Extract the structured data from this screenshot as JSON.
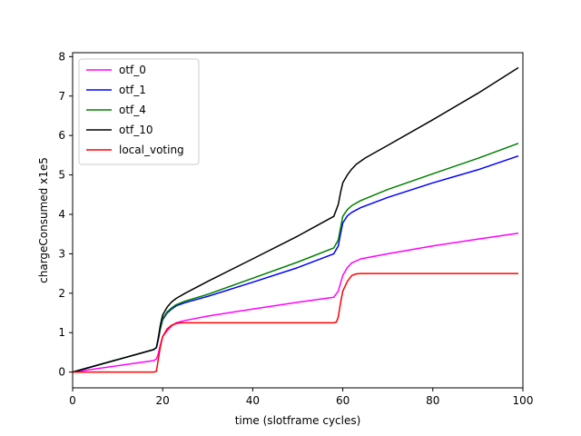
{
  "chart_data": {
    "type": "line",
    "title": "",
    "xlabel": "time (slotframe cycles)",
    "ylabel": "chargeConsumed x1e5",
    "xlim": [
      0,
      100
    ],
    "ylim": [
      -0.4,
      8.1
    ],
    "xticks": [
      0,
      20,
      40,
      60,
      80,
      100
    ],
    "yticks": [
      0,
      1,
      2,
      3,
      4,
      5,
      6,
      7,
      8
    ],
    "grid": false,
    "legend_position": "upper-left",
    "series": [
      {
        "name": "otf_0",
        "color": "#ff00ff",
        "x": [
          0,
          18,
          18.6,
          19,
          19.5,
          20,
          21,
          22,
          23,
          25,
          30,
          40,
          50,
          58,
          59,
          60,
          61,
          62,
          64,
          70,
          80,
          90,
          99
        ],
        "y": [
          0,
          0.29,
          0.33,
          0.45,
          0.7,
          0.9,
          1.05,
          1.17,
          1.25,
          1.31,
          1.42,
          1.6,
          1.77,
          1.9,
          2.05,
          2.45,
          2.65,
          2.77,
          2.87,
          3.0,
          3.2,
          3.37,
          3.52
        ]
      },
      {
        "name": "otf_1",
        "color": "#0000ff",
        "x": [
          0,
          18,
          18.6,
          19,
          19.5,
          20,
          21,
          22,
          23,
          25,
          30,
          40,
          50,
          58,
          59,
          59.5,
          60,
          61,
          62,
          64,
          70,
          80,
          90,
          99
        ],
        "y": [
          0,
          0.57,
          0.62,
          0.8,
          1.1,
          1.33,
          1.5,
          1.6,
          1.68,
          1.76,
          1.92,
          2.28,
          2.65,
          3.0,
          3.2,
          3.5,
          3.78,
          3.96,
          4.05,
          4.17,
          4.43,
          4.8,
          5.13,
          5.48
        ]
      },
      {
        "name": "otf_4",
        "color": "#008000",
        "x": [
          0,
          18,
          18.6,
          19,
          19.5,
          20,
          21,
          22,
          23,
          25,
          30,
          40,
          50,
          58,
          59,
          59.5,
          60,
          61,
          62,
          64,
          70,
          80,
          90,
          99
        ],
        "y": [
          0,
          0.57,
          0.62,
          0.82,
          1.13,
          1.36,
          1.53,
          1.63,
          1.71,
          1.8,
          1.97,
          2.38,
          2.79,
          3.15,
          3.35,
          3.65,
          3.95,
          4.12,
          4.22,
          4.35,
          4.63,
          5.03,
          5.42,
          5.8
        ]
      },
      {
        "name": "otf_10",
        "color": "#000000",
        "x": [
          0,
          18,
          18.6,
          19,
          19.5,
          20,
          21,
          22,
          23,
          25,
          30,
          40,
          50,
          58,
          59,
          59.5,
          60,
          61,
          62,
          63,
          65,
          70,
          80,
          90,
          99
        ],
        "y": [
          0,
          0.57,
          0.62,
          0.85,
          1.2,
          1.45,
          1.65,
          1.78,
          1.87,
          2.0,
          2.3,
          2.87,
          3.45,
          3.95,
          4.25,
          4.55,
          4.8,
          5.0,
          5.15,
          5.27,
          5.43,
          5.75,
          6.4,
          7.07,
          7.72
        ]
      },
      {
        "name": "local_voting",
        "color": "#ff0000",
        "x": [
          0,
          18,
          18.6,
          19,
          19.5,
          20,
          21,
          22,
          23,
          24,
          25,
          30,
          40,
          50,
          58,
          58.6,
          59,
          59.5,
          60,
          61,
          62,
          63,
          64,
          70,
          80,
          90,
          99
        ],
        "y": [
          0,
          0,
          0.02,
          0.3,
          0.65,
          0.9,
          1.1,
          1.19,
          1.23,
          1.25,
          1.25,
          1.25,
          1.25,
          1.25,
          1.25,
          1.27,
          1.4,
          1.75,
          2.05,
          2.3,
          2.45,
          2.49,
          2.5,
          2.5,
          2.5,
          2.5,
          2.5
        ]
      }
    ]
  }
}
